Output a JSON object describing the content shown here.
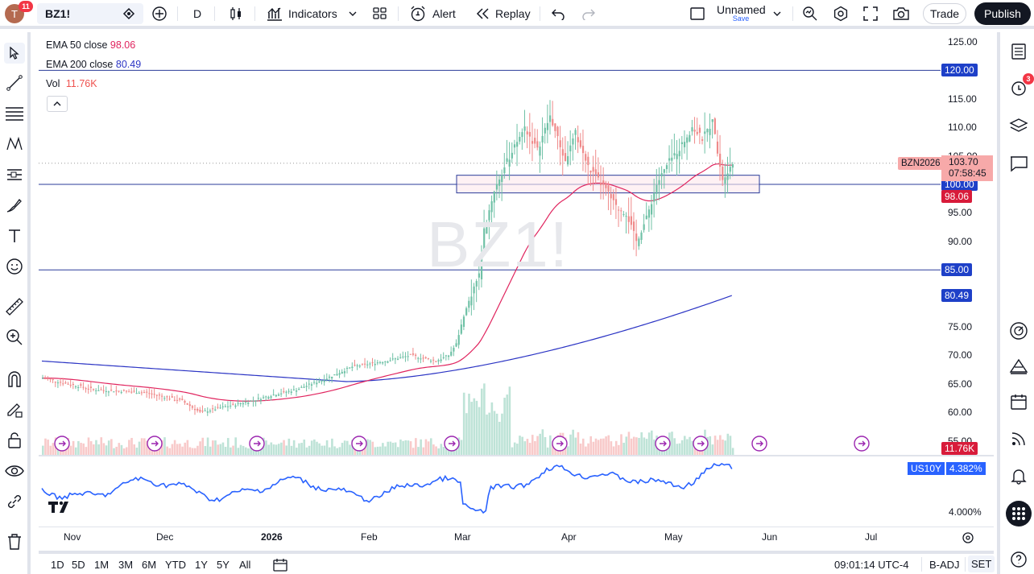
{
  "topbar": {
    "avatar_letter": "T",
    "avatar_badge": "11",
    "symbol": "BZ1!",
    "interval": "D",
    "indicators_label": "Indicators",
    "alert_label": "Alert",
    "replay_label": "Replay",
    "layout_name": "Unnamed",
    "layout_save": "Save",
    "trade_label": "Trade",
    "publish_label": "Publish"
  },
  "legend": {
    "ema50_label": "EMA 50 close",
    "ema50_value": "98.06",
    "ema200_label": "EMA 200 close",
    "ema200_value": "80.49",
    "vol_label": "Vol",
    "vol_value": "11.76K"
  },
  "watermark": "BZ1!",
  "price_axis": {
    "ticks": [
      "125.00",
      "120.00",
      "115.00",
      "110.00",
      "105.00",
      "95.00",
      "90.00",
      "85.00",
      "75.00",
      "70.00",
      "65.00",
      "60.00",
      "55.00"
    ],
    "tag_120": "120.00",
    "tag_100": "100.00",
    "tag_85": "85.00",
    "symbol_tag": "BZN2026",
    "last_price": "103.70",
    "countdown": "07:58:45",
    "ema50_tag": "98.06",
    "ema200_tag": "80.49",
    "vol_tag": "11.76K"
  },
  "oscillator": {
    "symbol": "US10Y",
    "value": "4.382%",
    "axis_tick": "4.000%"
  },
  "time_axis": [
    "Nov",
    "Dec",
    "2026",
    "Feb",
    "Mar",
    "Apr",
    "May",
    "Jun",
    "Jul"
  ],
  "bottombar": {
    "ranges": [
      "1D",
      "5D",
      "1M",
      "3M",
      "6M",
      "YTD",
      "1Y",
      "5Y",
      "All"
    ],
    "clock": "09:01:14 UTC-4",
    "badj": "B-ADJ",
    "set": "SET"
  },
  "right_badge": "3",
  "colors": {
    "up": "#6fc1a6",
    "down": "#ef8a8a",
    "ema50": "#e0245e",
    "ema200": "#2b34c4",
    "hline": "#2a3b9a",
    "osc": "#2962ff",
    "tag_blue": "#1e40c8",
    "tag_red": "#d81b3a"
  }
}
